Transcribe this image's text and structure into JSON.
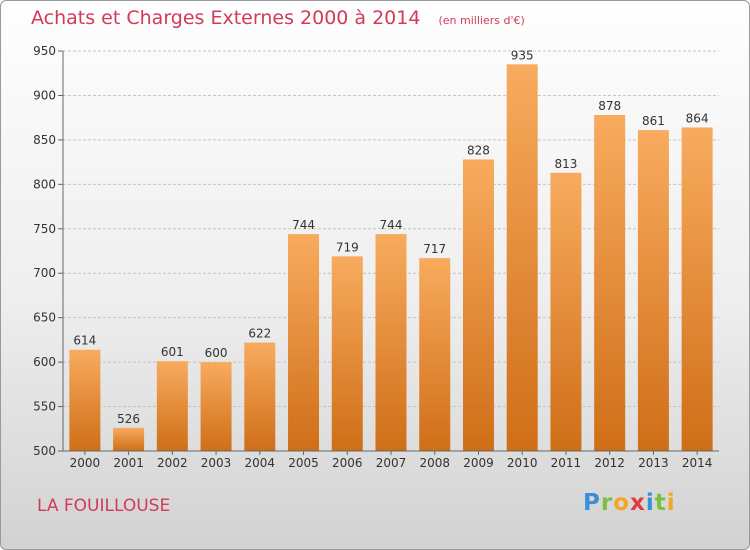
{
  "title": "Achats et Charges Externes 2000 à 2014",
  "title_unit": "(en milliers d'€)",
  "commune": "LA FOUILLOUSE",
  "logo_text": "Proxiti",
  "colors": {
    "bar_light": "#f7a85a",
    "bar_dark": "#d0701a",
    "title": "#d23a5a"
  },
  "chart_data": {
    "type": "bar",
    "categories": [
      "2000",
      "2001",
      "2002",
      "2003",
      "2004",
      "2005",
      "2006",
      "2007",
      "2008",
      "2009",
      "2010",
      "2011",
      "2012",
      "2013",
      "2014"
    ],
    "values": [
      614,
      526,
      601,
      600,
      622,
      744,
      719,
      744,
      717,
      828,
      935,
      813,
      878,
      861,
      864
    ],
    "ylim": [
      500,
      950
    ],
    "yticks": [
      500,
      550,
      600,
      650,
      700,
      750,
      800,
      850,
      900,
      950
    ],
    "grid": true,
    "legend": "none"
  }
}
